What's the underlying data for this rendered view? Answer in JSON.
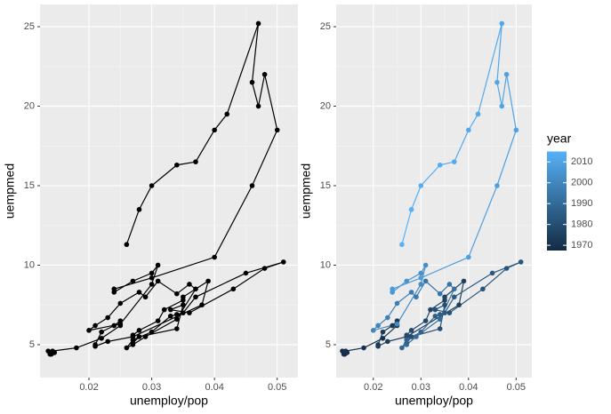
{
  "chart_data": [
    {
      "type": "path",
      "color": "#000000",
      "xlabel": "unemploy/pop",
      "ylabel": "uempmed",
      "xlim": [
        0.0122,
        0.0533
      ],
      "ylim": [
        2.93,
        26.4
      ],
      "xticks": [
        0.02,
        0.03,
        0.04,
        0.05
      ],
      "yticks": [
        5,
        10,
        15,
        20,
        25
      ],
      "grid": true,
      "x": [
        0.0145,
        0.014,
        0.0135,
        0.0138,
        0.0142,
        0.018,
        0.022,
        0.025,
        0.025,
        0.024,
        0.022,
        0.021,
        0.021,
        0.023,
        0.027,
        0.038,
        0.039,
        0.035,
        0.035,
        0.032,
        0.031,
        0.028,
        0.027,
        0.027,
        0.028,
        0.034,
        0.035,
        0.033,
        0.036,
        0.043,
        0.048,
        0.051,
        0.045,
        0.037,
        0.035,
        0.034,
        0.033,
        0.03,
        0.027,
        0.026,
        0.027,
        0.029,
        0.034,
        0.037,
        0.036,
        0.034,
        0.031,
        0.029,
        0.028,
        0.025,
        0.023,
        0.021,
        0.02,
        0.025,
        0.03,
        0.031,
        0.03,
        0.027,
        0.024,
        0.024,
        0.03,
        0.04,
        0.046,
        0.05,
        0.048,
        0.047,
        0.046,
        0.047,
        0.042,
        0.04,
        0.037,
        0.034,
        0.03,
        0.028,
        0.026
      ],
      "y": [
        4.5,
        4.4,
        4.6,
        4.4,
        4.6,
        4.8,
        5.4,
        6.2,
        6.5,
        6.2,
        5.8,
        5.0,
        4.9,
        5.2,
        5.5,
        7.5,
        9.0,
        8.0,
        7.8,
        7.2,
        6.5,
        5.9,
        5.6,
        5.1,
        5.5,
        6.0,
        7.5,
        7.2,
        7.0,
        8.5,
        9.8,
        10.2,
        9.5,
        8.0,
        7.0,
        6.9,
        6.8,
        5.8,
        5.3,
        4.8,
        5.0,
        5.5,
        6.6,
        8.5,
        8.8,
        8.2,
        9.0,
        8.0,
        8.3,
        7.6,
        6.7,
        6.2,
        5.9,
        6.3,
        8.8,
        10.0,
        9.5,
        9.0,
        8.3,
        8.5,
        9.2,
        10.5,
        15.0,
        18.5,
        22.0,
        20.0,
        21.5,
        25.2,
        19.5,
        18.5,
        16.5,
        16.3,
        15.0,
        13.5,
        11.3
      ]
    },
    {
      "type": "path",
      "xlabel": "unemploy/pop",
      "ylabel": "uempmed",
      "xlim": [
        0.0122,
        0.0533
      ],
      "ylim": [
        2.93,
        26.4
      ],
      "xticks": [
        0.02,
        0.03,
        0.04,
        0.05
      ],
      "yticks": [
        5,
        10,
        15,
        20,
        25
      ],
      "grid": true,
      "color_scale": {
        "low": "#132B43",
        "high": "#56B1F7",
        "limits": [
          1967.5,
          2015
        ]
      },
      "legend": {
        "title": "year",
        "ticks": [
          1970,
          1980,
          1990,
          2000,
          2010
        ]
      },
      "x": [
        0.0145,
        0.014,
        0.0135,
        0.0138,
        0.0142,
        0.018,
        0.022,
        0.025,
        0.025,
        0.024,
        0.022,
        0.021,
        0.021,
        0.023,
        0.027,
        0.038,
        0.039,
        0.035,
        0.035,
        0.032,
        0.031,
        0.028,
        0.027,
        0.027,
        0.028,
        0.034,
        0.035,
        0.033,
        0.036,
        0.043,
        0.048,
        0.051,
        0.045,
        0.037,
        0.035,
        0.034,
        0.033,
        0.03,
        0.027,
        0.026,
        0.027,
        0.029,
        0.034,
        0.037,
        0.036,
        0.034,
        0.031,
        0.029,
        0.028,
        0.025,
        0.023,
        0.021,
        0.02,
        0.025,
        0.03,
        0.031,
        0.03,
        0.027,
        0.024,
        0.024,
        0.03,
        0.04,
        0.046,
        0.05,
        0.048,
        0.047,
        0.046,
        0.047,
        0.042,
        0.04,
        0.037,
        0.034,
        0.03,
        0.028,
        0.026
      ],
      "y": [
        4.5,
        4.4,
        4.6,
        4.4,
        4.6,
        4.8,
        5.4,
        6.2,
        6.5,
        6.2,
        5.8,
        5.0,
        4.9,
        5.2,
        5.5,
        7.5,
        9.0,
        8.0,
        7.8,
        7.2,
        6.5,
        5.9,
        5.6,
        5.1,
        5.5,
        6.0,
        7.5,
        7.2,
        7.0,
        8.5,
        9.8,
        10.2,
        9.5,
        8.0,
        7.0,
        6.9,
        6.8,
        5.8,
        5.3,
        4.8,
        5.0,
        5.5,
        6.6,
        8.5,
        8.8,
        8.2,
        9.0,
        8.0,
        8.3,
        7.6,
        6.7,
        6.2,
        5.9,
        6.3,
        8.8,
        10.0,
        9.5,
        9.0,
        8.3,
        8.5,
        9.2,
        10.5,
        15.0,
        18.5,
        22.0,
        20.0,
        21.5,
        25.2,
        19.5,
        18.5,
        16.5,
        16.3,
        15.0,
        13.5,
        11.3
      ],
      "year": [
        1967.5,
        1968,
        1968.5,
        1969,
        1969.5,
        1970,
        1970.5,
        1971,
        1971.5,
        1972,
        1972.5,
        1973,
        1973.5,
        1974,
        1974.5,
        1975,
        1975.5,
        1976,
        1976.5,
        1977,
        1977.5,
        1978,
        1978.5,
        1979,
        1979.5,
        1980,
        1980.5,
        1981,
        1981.5,
        1982,
        1982.5,
        1983,
        1983.5,
        1984,
        1984.5,
        1985,
        1986,
        1987,
        1988,
        1989,
        1989.5,
        1990,
        1991,
        1992,
        1992.5,
        1993,
        1994,
        1995,
        1996,
        1997,
        1998,
        1999,
        2000,
        2001,
        2002,
        2003,
        2004,
        2005,
        2006,
        2007,
        2008,
        2008.5,
        2009,
        2009.5,
        2010,
        2010.5,
        2011,
        2011.5,
        2012,
        2012.5,
        2013,
        2013.5,
        2014,
        2014.5,
        2015
      ]
    }
  ]
}
